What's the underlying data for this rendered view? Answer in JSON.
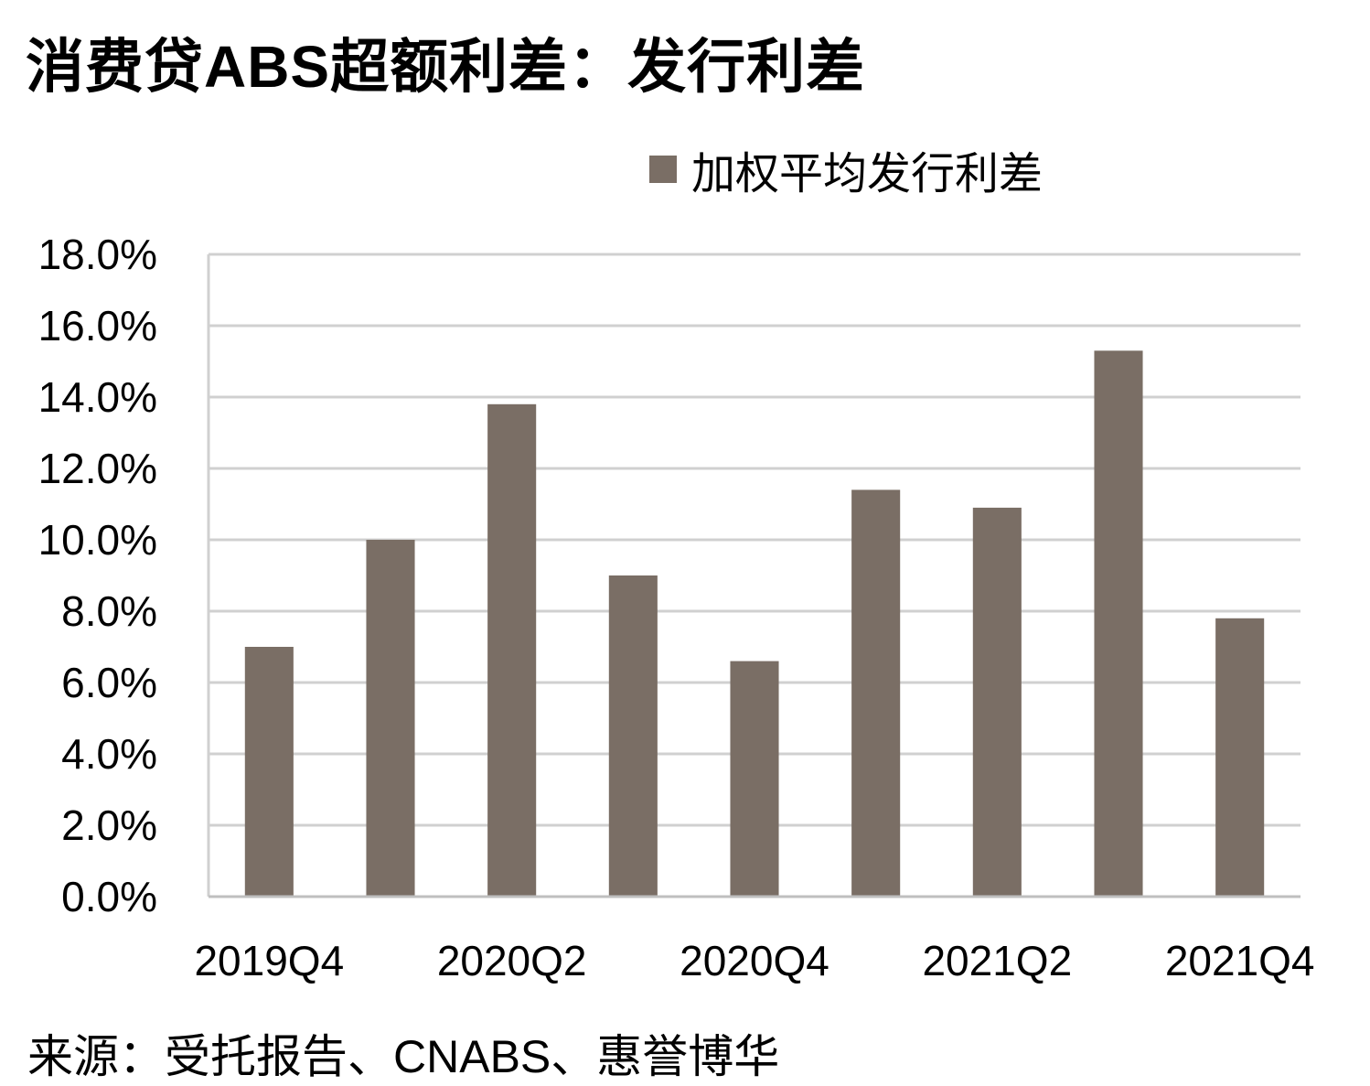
{
  "title": "消费贷ABS超额利差：发行利差",
  "source": "来源：受托报告、CNABS、惠誉博华",
  "colors": {
    "bar": "#7a6e65",
    "grid": "#d0d0d0",
    "axis": "#bfbfbf"
  },
  "chart_data": {
    "type": "bar",
    "legend_position": "top-right",
    "grid": true,
    "categories": [
      "2019Q4",
      "2020Q1",
      "2020Q2",
      "2020Q3",
      "2020Q4",
      "2021Q1",
      "2021Q2",
      "2021Q3",
      "2021Q4"
    ],
    "category_labels_shown": [
      "2019Q4",
      "",
      "2020Q2",
      "",
      "2020Q4",
      "",
      "2021Q2",
      "",
      "2021Q4"
    ],
    "series": [
      {
        "name": "加权平均发行利差",
        "values": [
          7.0,
          10.0,
          13.8,
          9.0,
          6.6,
          11.4,
          10.9,
          15.3,
          7.8
        ]
      }
    ],
    "ylim": [
      0,
      18
    ],
    "yticks": [
      0,
      2,
      4,
      6,
      8,
      10,
      12,
      14,
      16,
      18
    ],
    "ytick_format": "percent_1dp"
  }
}
